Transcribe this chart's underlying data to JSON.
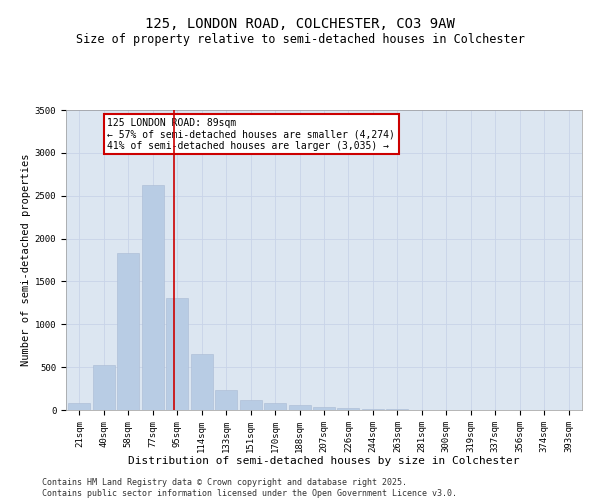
{
  "title": "125, LONDON ROAD, COLCHESTER, CO3 9AW",
  "subtitle": "Size of property relative to semi-detached houses in Colchester",
  "xlabel": "Distribution of semi-detached houses by size in Colchester",
  "ylabel": "Number of semi-detached properties",
  "categories": [
    "21sqm",
    "40sqm",
    "58sqm",
    "77sqm",
    "95sqm",
    "114sqm",
    "133sqm",
    "151sqm",
    "170sqm",
    "188sqm",
    "207sqm",
    "226sqm",
    "244sqm",
    "263sqm",
    "281sqm",
    "300sqm",
    "319sqm",
    "337sqm",
    "356sqm",
    "374sqm",
    "393sqm"
  ],
  "values": [
    80,
    530,
    1830,
    2630,
    1310,
    650,
    230,
    120,
    80,
    60,
    40,
    20,
    10,
    8,
    5,
    3,
    2,
    1,
    1,
    0,
    0
  ],
  "bar_color": "#b8cce4",
  "bar_edge_color": "#aabbd4",
  "red_line_x": 3.85,
  "annotation_text": "125 LONDON ROAD: 89sqm\n← 57% of semi-detached houses are smaller (4,274)\n41% of semi-detached houses are larger (3,035) →",
  "annotation_box_color": "#ffffff",
  "annotation_box_edge_color": "#cc0000",
  "red_line_color": "#cc0000",
  "ylim": [
    0,
    3500
  ],
  "yticks": [
    0,
    500,
    1000,
    1500,
    2000,
    2500,
    3000,
    3500
  ],
  "grid_color": "#c8d4e8",
  "background_color": "#dce6f1",
  "footer_line1": "Contains HM Land Registry data © Crown copyright and database right 2025.",
  "footer_line2": "Contains public sector information licensed under the Open Government Licence v3.0.",
  "title_fontsize": 10,
  "subtitle_fontsize": 8.5,
  "xlabel_fontsize": 8,
  "ylabel_fontsize": 7.5,
  "tick_fontsize": 6.5,
  "annotation_fontsize": 7,
  "footer_fontsize": 6
}
